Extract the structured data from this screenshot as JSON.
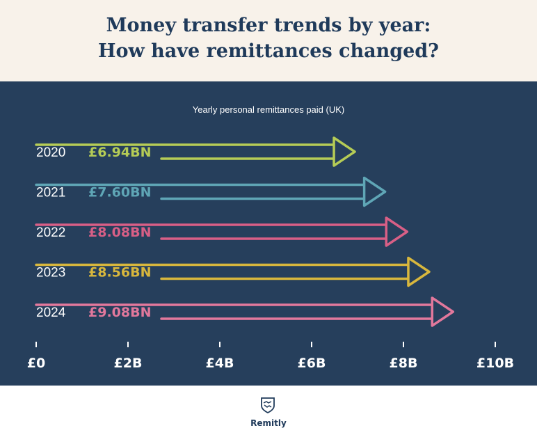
{
  "header": {
    "title_line1": "Money transfer trends by year:",
    "title_line2": "How have remittances changed?"
  },
  "colors": {
    "header_bg": "#f8f2ea",
    "panel_bg": "#263f5c",
    "title": "#1f3a5a"
  },
  "chart_data": {
    "type": "bar",
    "title": "Yearly personal remittances  paid (UK)",
    "orientation": "horizontal",
    "marker": "arrow",
    "categories": [
      "2020",
      "2021",
      "2022",
      "2023",
      "2024"
    ],
    "values": [
      6.94,
      7.6,
      8.08,
      8.56,
      9.08
    ],
    "value_labels": [
      "£6.94BN",
      "£7.60BN",
      "£8.08BN",
      "£8.56BN",
      "£9.08BN"
    ],
    "series_colors": [
      "#b5cc56",
      "#5fa6b6",
      "#d85f86",
      "#d8b73d",
      "#e2789c"
    ],
    "xlim": [
      0,
      10
    ],
    "xticks": [
      0,
      2,
      4,
      6,
      8,
      10
    ],
    "xtick_labels": [
      "£0",
      "£2B",
      "£4B",
      "£6B",
      "£8B",
      "£10B"
    ],
    "xlabel": "",
    "ylabel": "",
    "grid": false
  },
  "brand": {
    "name": "Remitly",
    "logo_icon": "handshake-shield-icon"
  }
}
